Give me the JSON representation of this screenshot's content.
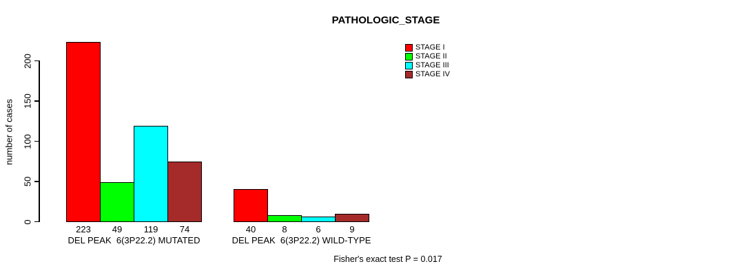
{
  "title": "PATHOLOGIC_STAGE",
  "y_axis_label": "number of cases",
  "footer": "Fisher's exact test P = 0.017",
  "chart_data": {
    "type": "bar",
    "grouped": true,
    "title": "PATHOLOGIC_STAGE",
    "xlabel": "",
    "ylabel": "number of cases",
    "ylim": [
      0,
      225
    ],
    "yticks": [
      0,
      50,
      100,
      150,
      200
    ],
    "grid": false,
    "legend_position": "top-right",
    "bar_value_labels_shown": true,
    "categories": [
      "DEL PEAK  6(3P22.2) MUTATED",
      "DEL PEAK  6(3P22.2) WILD-TYPE"
    ],
    "series": [
      {
        "name": "STAGE I",
        "color": "#FF0000",
        "values": [
          223,
          40
        ]
      },
      {
        "name": "STAGE II",
        "color": "#00FF00",
        "values": [
          49,
          8
        ]
      },
      {
        "name": "STAGE III",
        "color": "#00FFFF",
        "values": [
          119,
          6
        ]
      },
      {
        "name": "STAGE IV",
        "color": "#A52A2A",
        "values": [
          74,
          9
        ]
      }
    ],
    "annotation": "Fisher's exact test P = 0.017"
  }
}
